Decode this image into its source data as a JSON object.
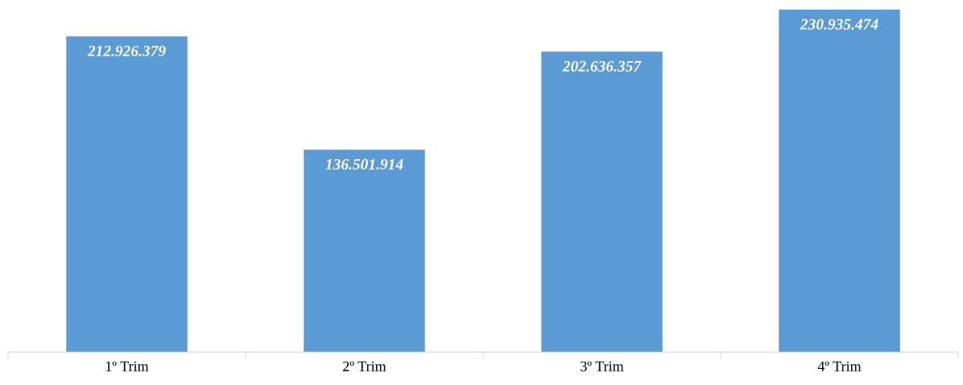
{
  "chart_data": {
    "type": "bar",
    "categories": [
      "1º Trim",
      "2º Trim",
      "3º Trim",
      "4º Trim"
    ],
    "values": [
      212926379,
      136501914,
      202636357,
      230935474
    ],
    "value_labels": [
      "212.926.379",
      "136.501.914",
      "202.636.357",
      "230.935.474"
    ],
    "color": "#5b9bd5",
    "grid": false,
    "legend": false
  }
}
